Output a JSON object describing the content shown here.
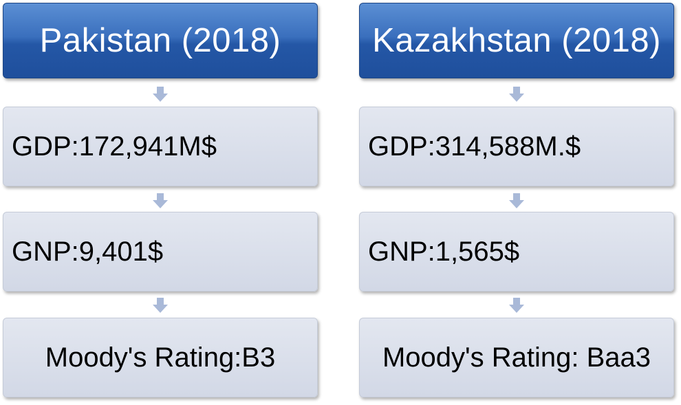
{
  "columns": [
    {
      "title": "Pakistan (2018)",
      "gdp": "GDP:172,941M$",
      "gnp": "GNP:9,401$",
      "rating": "Moody's Rating:B3"
    },
    {
      "title": "Kazakhstan (2018)",
      "gdp": "GDP:314,588M.$",
      "gnp": "GNP:1,565$",
      "rating": "Moody's Rating: Baa3"
    }
  ],
  "colors": {
    "header_fill": "#2457a6",
    "header_text": "#ffffff",
    "item_fill": "#d2d8e6",
    "arrow_fill": "#a9b9d8"
  },
  "icons": [
    "down-arrow-icon"
  ]
}
